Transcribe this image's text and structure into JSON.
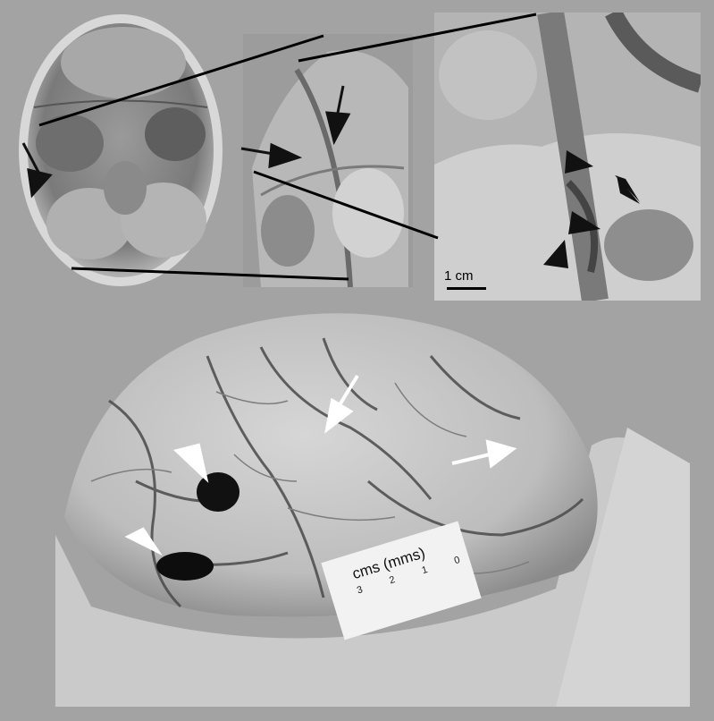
{
  "figure": {
    "scale_bar_label": "1 cm",
    "ruler_label": "cms (mms)",
    "ruler_ticks": [
      "0",
      "1",
      "2",
      "3"
    ]
  },
  "colors": {
    "background": "#a3a3a3",
    "black_arrow": "#111111",
    "white_arrow": "#ffffff"
  },
  "panels": [
    {
      "name": "skull-base-overview",
      "icon": "skull-base-photo"
    },
    {
      "name": "dural-detail-photo",
      "icon": "dura-closeup-photo"
    },
    {
      "name": "vessel-closeup-photo",
      "icon": "vessel-closeup-photo"
    },
    {
      "name": "brain-surface-photo",
      "icon": "brain-autopsy-photo"
    }
  ]
}
